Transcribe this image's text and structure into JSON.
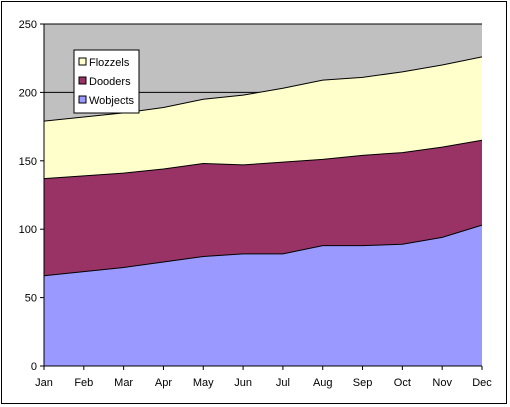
{
  "chart_data": {
    "type": "area",
    "stacked": true,
    "categories": [
      "Jan",
      "Feb",
      "Mar",
      "Apr",
      "May",
      "Jun",
      "Jul",
      "Aug",
      "Sep",
      "Oct",
      "Nov",
      "Dec"
    ],
    "series": [
      {
        "name": "Wobjects",
        "color": "#9999ff",
        "values": [
          66,
          69,
          72,
          76,
          80,
          82,
          82,
          88,
          88,
          89,
          94,
          103
        ]
      },
      {
        "name": "Dooders",
        "color": "#993366",
        "values": [
          71,
          70,
          69,
          68,
          68,
          65,
          67,
          63,
          66,
          67,
          66,
          62
        ]
      },
      {
        "name": "Flozzels",
        "color": "#ffffcc",
        "values": [
          42,
          43,
          44,
          45,
          47,
          51,
          54,
          58,
          57,
          59,
          60,
          61
        ]
      }
    ],
    "yticks": [
      0,
      50,
      100,
      150,
      200,
      250
    ],
    "ylim": [
      0,
      250
    ],
    "plot_background": "#c0c0c0",
    "legend_position": "top-left",
    "grid": "horizontal"
  }
}
